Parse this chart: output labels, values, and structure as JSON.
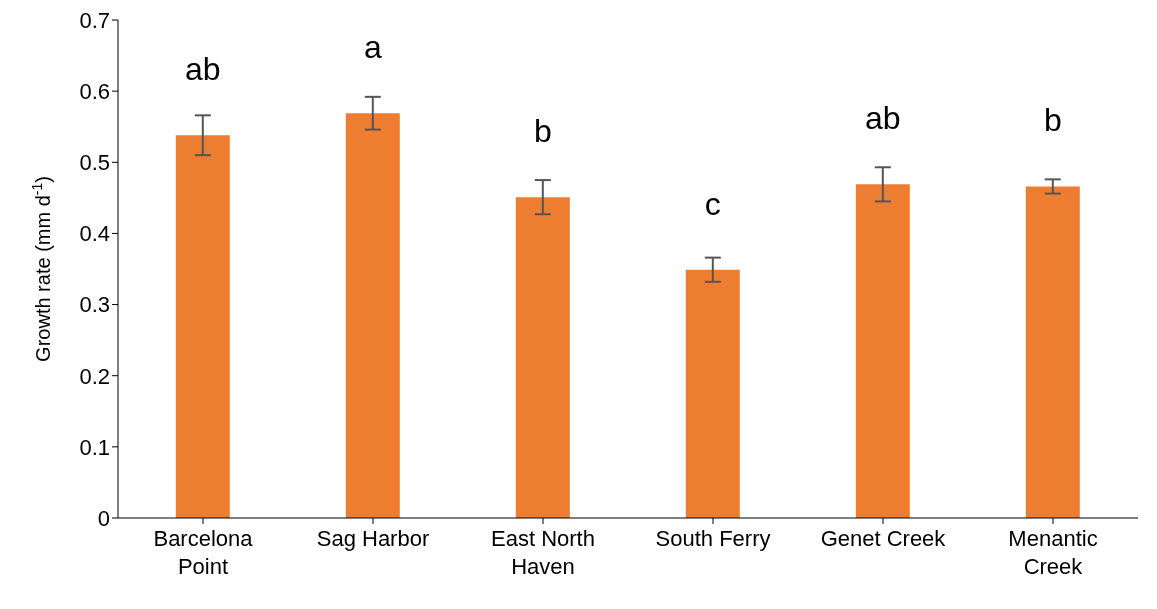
{
  "chart_data": {
    "type": "bar",
    "ylabel": "Growth rate (mm d$^{-1}$)",
    "categories": [
      "Barcelona Point",
      "Sag Harbor",
      "East North Haven",
      "South Ferry",
      "Genet Creek",
      "Menantic Creek"
    ],
    "values": [
      0.538,
      0.569,
      0.451,
      0.349,
      0.469,
      0.466
    ],
    "errors": [
      0.028,
      0.023,
      0.024,
      0.017,
      0.024,
      0.01
    ],
    "color": "#ed7d31",
    "ylim": [
      0,
      0.7
    ],
    "yticks": [
      0,
      {
        "value": 0.1,
        "label": "0.1"
      },
      {
        "value": 0.2,
        "label": "0.2"
      },
      {
        "value": 0.3,
        "label": "0.3"
      },
      {
        "value": 0.4,
        "label": "0.4"
      },
      {
        "value": 0.5,
        "label": "0.5"
      },
      {
        "value": 0.6,
        "label": "0.6"
      },
      {
        "value": 0.7,
        "label": "0.7"
      }
    ],
    "grid": false,
    "legend": false,
    "annotations": [
      "ab",
      "a",
      "b",
      "c",
      "ab",
      "b"
    ]
  }
}
